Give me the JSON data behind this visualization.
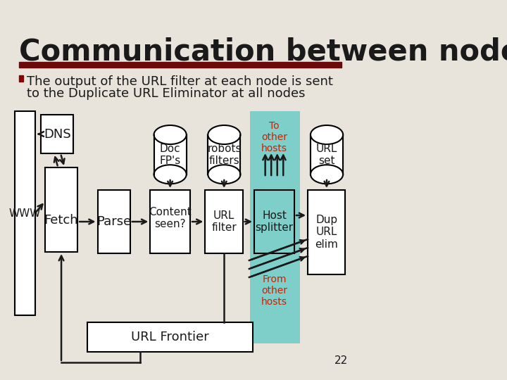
{
  "title": "Communication between nodes",
  "bullet_text_line1": "The output of the URL filter at each node is sent",
  "bullet_text_line2": "to the Duplicate URL Eliminator at all nodes",
  "bg_color": "#e8e4dc",
  "title_color": "#1a1a1a",
  "bar_color": "#6b0a0a",
  "bullet_color": "#8b0000",
  "text_color": "#1a1a1a",
  "teal_color": "#7ececa",
  "red_text_color": "#cc2200",
  "box_edge_color": "#1a1a1a",
  "slide_number": "22"
}
